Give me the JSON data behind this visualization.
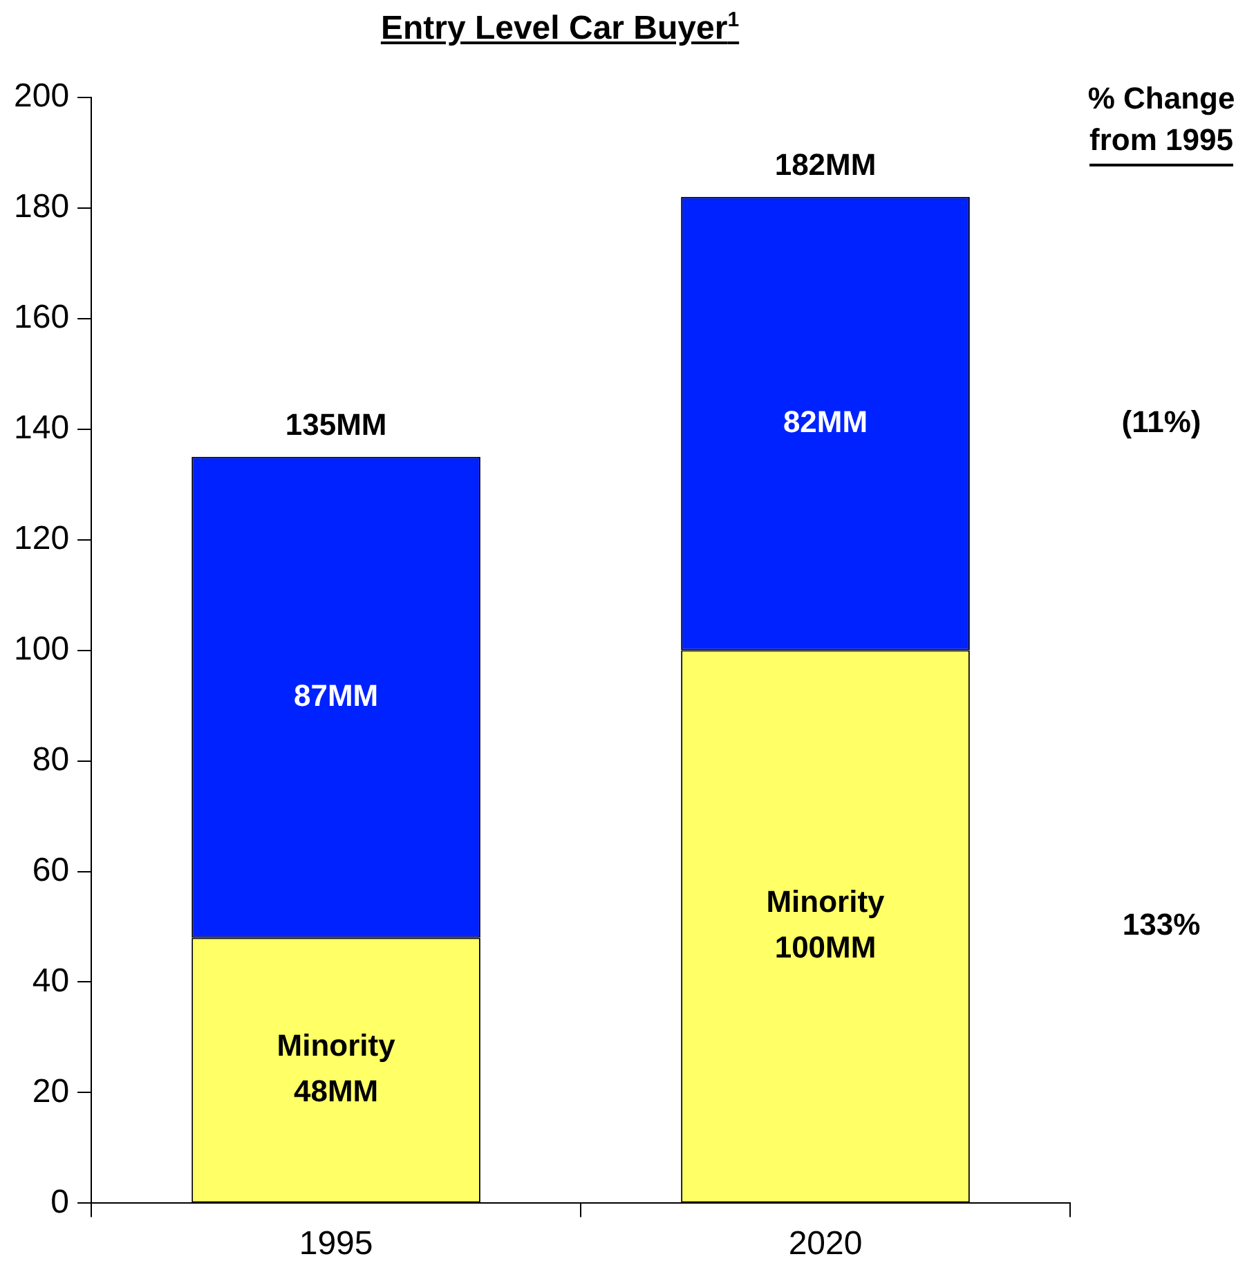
{
  "chart_data": {
    "type": "bar",
    "title": "Entry Level Car Buyer$^{1}$",
    "categories": [
      "1995",
      "2020"
    ],
    "stacked": true,
    "series": [
      {
        "name": "Minority",
        "color": "#ffff66",
        "values": [
          48,
          100
        ],
        "value_labels": [
          "48MM",
          "100MM"
        ]
      },
      {
        "color": "#0022ff",
        "values": [
          87,
          82
        ],
        "value_labels": [
          "87MM",
          "82MM"
        ]
      }
    ],
    "totals": [
      "135MM",
      "182MM"
    ],
    "ylim": [
      0,
      200
    ],
    "yticks": [
      0,
      20,
      40,
      60,
      80,
      100,
      120,
      140,
      160,
      180,
      200
    ],
    "grid": false,
    "legend": false,
    "annotations": [
      "% Change from 1995",
      "(11%)",
      "133%"
    ]
  }
}
